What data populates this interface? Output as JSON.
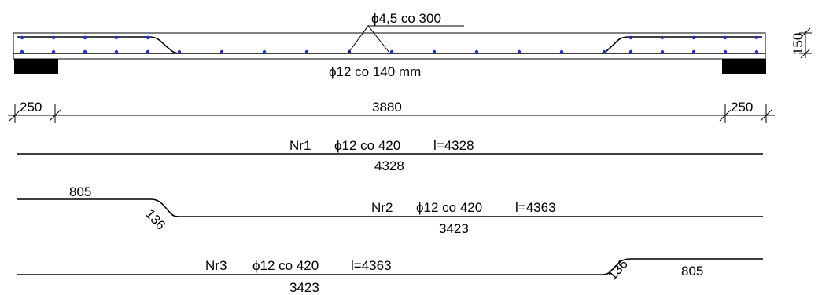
{
  "beam": {
    "stirrup_label": "ϕ4,5 co 300",
    "main_bar_label": "ϕ12 co 140 mm",
    "height_label": "150",
    "top_bar_color": "#1f2fd6"
  },
  "dimensions": {
    "left_support": "250",
    "span": "3880",
    "right_support": "250"
  },
  "bars": [
    {
      "name": "Nr1",
      "spec": "ϕ12 co 420",
      "length": "l=4328",
      "below": "4328"
    },
    {
      "name": "Nr2",
      "spec": "ϕ12 co 420",
      "length": "l=4363",
      "below": "3423",
      "straight": "805",
      "bend": "136"
    },
    {
      "name": "Nr3",
      "spec": "ϕ12 co 420",
      "length": "l=4363",
      "below": "3423",
      "straight": "805",
      "bend": "136"
    }
  ]
}
